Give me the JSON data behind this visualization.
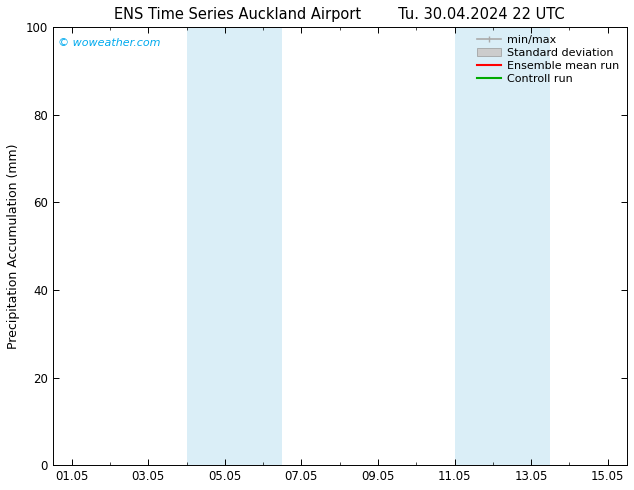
{
  "title": "ENS Time Series Auckland Airport",
  "title2": "Tu. 30.04.2024 22 UTC",
  "ylabel": "Precipitation Accumulation (mm)",
  "ylim": [
    0,
    100
  ],
  "xtick_labels": [
    "01.05",
    "03.05",
    "05.05",
    "07.05",
    "09.05",
    "11.05",
    "13.05",
    "15.05"
  ],
  "xtick_positions": [
    0,
    2,
    4,
    6,
    8,
    10,
    12,
    14
  ],
  "xlim": [
    -0.5,
    14.5
  ],
  "ytick_labels": [
    "0",
    "20",
    "40",
    "60",
    "80",
    "100"
  ],
  "ytick_positions": [
    0,
    20,
    40,
    60,
    80,
    100
  ],
  "shaded_bands": [
    {
      "x_start": 3.0,
      "x_end": 5.5
    },
    {
      "x_start": 10.0,
      "x_end": 12.5
    }
  ],
  "band_color": "#daeef7",
  "background_color": "#ffffff",
  "watermark_text": "© woweather.com",
  "watermark_color": "#00aaee",
  "legend_items": [
    {
      "label": "min/max",
      "color": "#aaaaaa",
      "lw": 1.2
    },
    {
      "label": "Standard deviation",
      "color": "#cccccc",
      "lw": 7
    },
    {
      "label": "Ensemble mean run",
      "color": "#ff0000",
      "lw": 1.5
    },
    {
      "label": "Controll run",
      "color": "#00aa00",
      "lw": 1.5
    }
  ],
  "title_fontsize": 10.5,
  "ylabel_fontsize": 9,
  "tick_fontsize": 8.5,
  "watermark_fontsize": 8,
  "legend_fontsize": 8
}
